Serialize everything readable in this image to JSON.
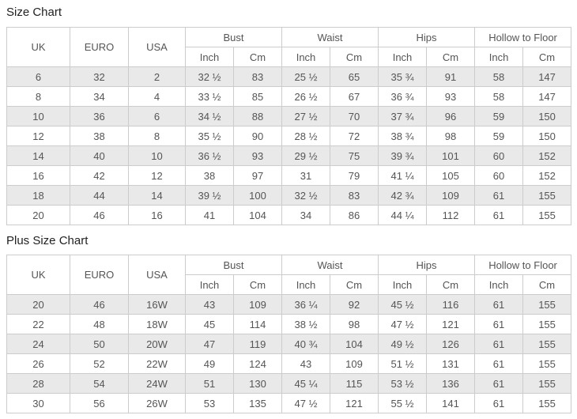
{
  "colors": {
    "stripe_row": "#e9e9e9",
    "border": "#cccccc",
    "cell_text": "#555555",
    "title_text": "#222222"
  },
  "tables": [
    {
      "title": "Size Chart",
      "simple_headers": [
        "UK",
        "EURO",
        "USA"
      ],
      "measure_groups": [
        {
          "label": "Bust",
          "subs": [
            "Inch",
            "Cm"
          ]
        },
        {
          "label": "Waist",
          "subs": [
            "Inch",
            "Cm"
          ]
        },
        {
          "label": "Hips",
          "subs": [
            "Inch",
            "Cm"
          ]
        },
        {
          "label": "Hollow to Floor",
          "subs": [
            "Inch",
            "Cm"
          ]
        }
      ],
      "rows": [
        [
          "6",
          "32",
          "2",
          "32 ½",
          "83",
          "25 ½",
          "65",
          "35 ¾",
          "91",
          "58",
          "147"
        ],
        [
          "8",
          "34",
          "4",
          "33 ½",
          "85",
          "26 ½",
          "67",
          "36 ¾",
          "93",
          "58",
          "147"
        ],
        [
          "10",
          "36",
          "6",
          "34 ½",
          "88",
          "27 ½",
          "70",
          "37 ¾",
          "96",
          "59",
          "150"
        ],
        [
          "12",
          "38",
          "8",
          "35 ½",
          "90",
          "28 ½",
          "72",
          "38 ¾",
          "98",
          "59",
          "150"
        ],
        [
          "14",
          "40",
          "10",
          "36 ½",
          "93",
          "29 ½",
          "75",
          "39 ¾",
          "101",
          "60",
          "152"
        ],
        [
          "16",
          "42",
          "12",
          "38",
          "97",
          "31",
          "79",
          "41 ¼",
          "105",
          "60",
          "152"
        ],
        [
          "18",
          "44",
          "14",
          "39 ½",
          "100",
          "32 ½",
          "83",
          "42 ¾",
          "109",
          "61",
          "155"
        ],
        [
          "20",
          "46",
          "16",
          "41",
          "104",
          "34",
          "86",
          "44 ¼",
          "112",
          "61",
          "155"
        ]
      ]
    },
    {
      "title": "Plus Size Chart",
      "simple_headers": [
        "UK",
        "EURO",
        "USA"
      ],
      "measure_groups": [
        {
          "label": "Bust",
          "subs": [
            "Inch",
            "Cm"
          ]
        },
        {
          "label": "Waist",
          "subs": [
            "Inch",
            "Cm"
          ]
        },
        {
          "label": "Hips",
          "subs": [
            "Inch",
            "Cm"
          ]
        },
        {
          "label": "Hollow to Floor",
          "subs": [
            "Inch",
            "Cm"
          ]
        }
      ],
      "rows": [
        [
          "20",
          "46",
          "16W",
          "43",
          "109",
          "36 ¼",
          "92",
          "45 ½",
          "116",
          "61",
          "155"
        ],
        [
          "22",
          "48",
          "18W",
          "45",
          "114",
          "38 ½",
          "98",
          "47 ½",
          "121",
          "61",
          "155"
        ],
        [
          "24",
          "50",
          "20W",
          "47",
          "119",
          "40 ¾",
          "104",
          "49 ½",
          "126",
          "61",
          "155"
        ],
        [
          "26",
          "52",
          "22W",
          "49",
          "124",
          "43",
          "109",
          "51 ½",
          "131",
          "61",
          "155"
        ],
        [
          "28",
          "54",
          "24W",
          "51",
          "130",
          "45 ¼",
          "115",
          "53 ½",
          "136",
          "61",
          "155"
        ],
        [
          "30",
          "56",
          "26W",
          "53",
          "135",
          "47 ½",
          "121",
          "55 ½",
          "141",
          "61",
          "155"
        ]
      ]
    }
  ]
}
